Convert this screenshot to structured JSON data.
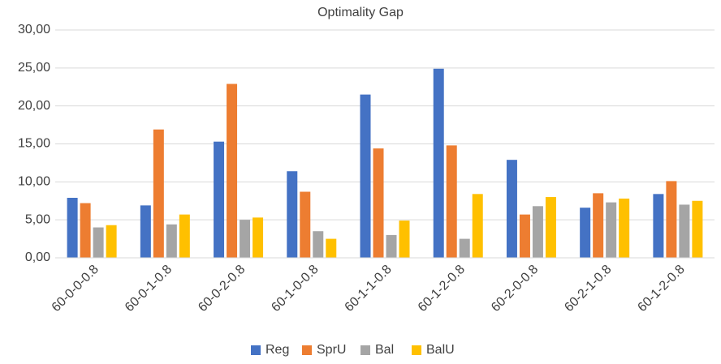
{
  "chart_data": {
    "type": "bar",
    "title": "Optimality Gap",
    "categories": [
      "60-0-0-0.8",
      "60-0-1-0.8",
      "60-0-2-0.8",
      "60-1-0-0.8",
      "60-1-1-0.8",
      "60-1-2-0.8",
      "60-2-0-0.8",
      "60-2-1-0.8",
      "60-1-2-0.8"
    ],
    "series": [
      {
        "name": "Reg",
        "color": "#4472c4",
        "values": [
          7.9,
          6.9,
          15.3,
          11.4,
          21.5,
          24.9,
          12.9,
          6.6,
          8.4
        ]
      },
      {
        "name": "SprU",
        "color": "#ed7d31",
        "values": [
          7.2,
          16.9,
          22.9,
          8.7,
          14.4,
          14.8,
          5.7,
          8.5,
          10.1
        ]
      },
      {
        "name": "Bal",
        "color": "#a5a5a5",
        "values": [
          4.0,
          4.4,
          5.0,
          3.5,
          3.0,
          2.5,
          6.8,
          7.3,
          7.0
        ]
      },
      {
        "name": "BalU",
        "color": "#ffc000",
        "values": [
          4.3,
          5.7,
          5.3,
          2.5,
          4.9,
          8.4,
          8.0,
          7.8,
          7.5
        ]
      }
    ],
    "ylim": [
      0,
      30
    ],
    "yticks": [
      {
        "value": 0,
        "label": "0,00"
      },
      {
        "value": 5,
        "label": "5,00"
      },
      {
        "value": 10,
        "label": "10,00"
      },
      {
        "value": 15,
        "label": "15,00"
      },
      {
        "value": 20,
        "label": "20,00"
      },
      {
        "value": 25,
        "label": "25,00"
      },
      {
        "value": 30,
        "label": "30,00"
      }
    ],
    "grid": true,
    "legend": "bottom"
  }
}
